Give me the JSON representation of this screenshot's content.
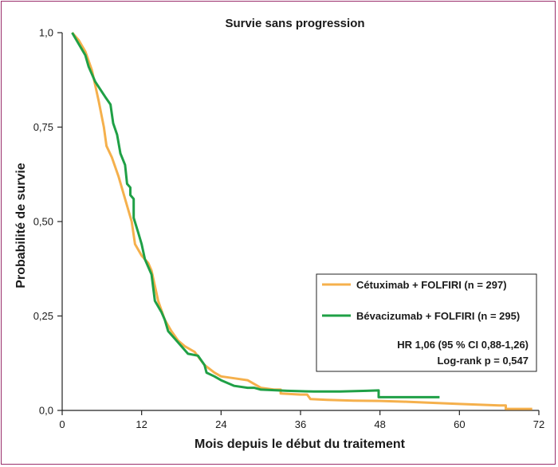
{
  "chart_data": {
    "type": "line",
    "title": "Survie sans progression",
    "xlabel": "Mois depuis le début du traitement",
    "ylabel": "Probabilité de survie",
    "xlim": [
      0,
      72
    ],
    "ylim": [
      0,
      1
    ],
    "xticks": [
      0,
      12,
      24,
      36,
      48,
      60,
      72
    ],
    "xtick_labels": [
      "0",
      "12",
      "24",
      "36",
      "48",
      "60",
      "72"
    ],
    "yticks": [
      0,
      0.25,
      0.5,
      0.75,
      1.0
    ],
    "ytick_labels": [
      "0,0",
      "0,25",
      "0,50",
      "0,75",
      "1,0"
    ],
    "grid": false,
    "legend_position": "right",
    "series": [
      {
        "name": "Cétuximab + FOLFIRI (n = 297)",
        "color": "#f5b04c",
        "points": [
          [
            1.5,
            1.0
          ],
          [
            2.5,
            0.98
          ],
          [
            3.5,
            0.95
          ],
          [
            4.5,
            0.9
          ],
          [
            5.5,
            0.82
          ],
          [
            6.3,
            0.75
          ],
          [
            6.7,
            0.7
          ],
          [
            7.5,
            0.67
          ],
          [
            8.5,
            0.62
          ],
          [
            9.5,
            0.56
          ],
          [
            10.5,
            0.5
          ],
          [
            11,
            0.44
          ],
          [
            12,
            0.41
          ],
          [
            13,
            0.39
          ],
          [
            13.5,
            0.37
          ],
          [
            14.5,
            0.29
          ],
          [
            15.5,
            0.24
          ],
          [
            16.5,
            0.21
          ],
          [
            17.5,
            0.185
          ],
          [
            18.5,
            0.17
          ],
          [
            20,
            0.155
          ],
          [
            21.5,
            0.12
          ],
          [
            23,
            0.1
          ],
          [
            24,
            0.09
          ],
          [
            26,
            0.085
          ],
          [
            28,
            0.08
          ],
          [
            30,
            0.06
          ],
          [
            32,
            0.055
          ],
          [
            33,
            0.055
          ],
          [
            33,
            0.045
          ],
          [
            36,
            0.042
          ],
          [
            37,
            0.042
          ],
          [
            37.5,
            0.03
          ],
          [
            40,
            0.028
          ],
          [
            44,
            0.026
          ],
          [
            48,
            0.025
          ],
          [
            52,
            0.023
          ],
          [
            56,
            0.02
          ],
          [
            60,
            0.017
          ],
          [
            66,
            0.013
          ],
          [
            67,
            0.013
          ],
          [
            67,
            0.004
          ],
          [
            71,
            0.004
          ]
        ]
      },
      {
        "name": "Bévacizumab + FOLFIRI (n = 295)",
        "color": "#1fa046",
        "points": [
          [
            1.5,
            1.0
          ],
          [
            2.5,
            0.97
          ],
          [
            3.5,
            0.94
          ],
          [
            4,
            0.91
          ],
          [
            5,
            0.87
          ],
          [
            6.5,
            0.83
          ],
          [
            7.3,
            0.81
          ],
          [
            7.7,
            0.76
          ],
          [
            8.3,
            0.73
          ],
          [
            8.8,
            0.68
          ],
          [
            9.5,
            0.65
          ],
          [
            9.8,
            0.6
          ],
          [
            10.3,
            0.59
          ],
          [
            10.3,
            0.57
          ],
          [
            10.8,
            0.56
          ],
          [
            10.8,
            0.51
          ],
          [
            11.5,
            0.47
          ],
          [
            12,
            0.44
          ],
          [
            12.5,
            0.4
          ],
          [
            13.5,
            0.36
          ],
          [
            14,
            0.29
          ],
          [
            15,
            0.26
          ],
          [
            15.5,
            0.24
          ],
          [
            16,
            0.21
          ],
          [
            17,
            0.19
          ],
          [
            18,
            0.17
          ],
          [
            19,
            0.15
          ],
          [
            20.5,
            0.145
          ],
          [
            21.5,
            0.12
          ],
          [
            21.8,
            0.1
          ],
          [
            23,
            0.09
          ],
          [
            24,
            0.08
          ],
          [
            26,
            0.065
          ],
          [
            28,
            0.06
          ],
          [
            29,
            0.06
          ],
          [
            30,
            0.055
          ],
          [
            34,
            0.052
          ],
          [
            38,
            0.05
          ],
          [
            42,
            0.05
          ],
          [
            46,
            0.052
          ],
          [
            47.8,
            0.053
          ],
          [
            47.8,
            0.035
          ],
          [
            52,
            0.035
          ],
          [
            57,
            0.035
          ]
        ]
      }
    ],
    "annotations": [
      "HR 1,06 (95 % CI 0,88-1,26)",
      "Log-rank p = 0,547"
    ]
  }
}
